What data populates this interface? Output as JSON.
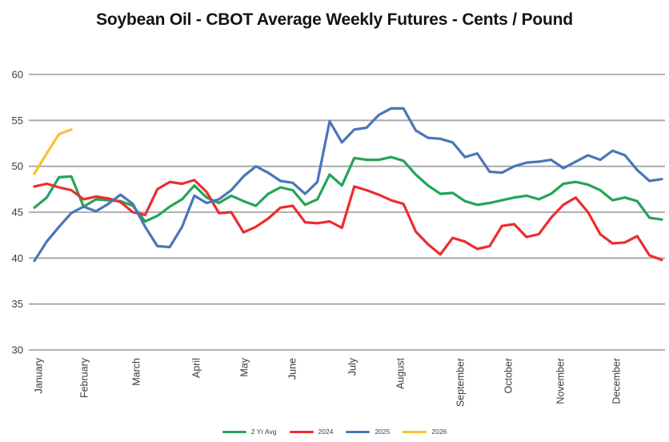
{
  "title": "Soybean Oil - CBOT Average Weekly Futures - Cents / Pound",
  "colors": {
    "grid": "#a6a6a6",
    "axis_text": "#3b3b3b",
    "title_text": "#141414",
    "series_green": "#25a457",
    "series_red": "#ed2c2f",
    "series_blue": "#4a76b8",
    "series_yellow": "#f8c032"
  },
  "chart_data": {
    "type": "line",
    "title": "Soybean Oil - CBOT Average Weekly Futures - Cents / Pound",
    "x_unit": "week of year (1-52)",
    "categories": [
      "January",
      "February",
      "March",
      "April",
      "May",
      "June",
      "July",
      "August",
      "September",
      "October",
      "November",
      "December"
    ],
    "y_ticks": [
      60,
      55,
      50,
      45,
      40,
      35,
      30
    ],
    "ylim": [
      30,
      60
    ],
    "ytick_interval": 5,
    "grid": "horizontal",
    "legend_position": "bottom",
    "series": [
      {
        "name": "2 Yr Avg",
        "color": "#25a457",
        "values": [
          45.5,
          46.6,
          48.8,
          48.9,
          45.6,
          46.4,
          46.3,
          46.2,
          45.7,
          44.0,
          44.6,
          45.6,
          46.4,
          47.9,
          46.6,
          46.0,
          46.8,
          46.2,
          45.7,
          47.0,
          47.7,
          47.4,
          45.8,
          46.4,
          49.1,
          47.9,
          50.9,
          50.7,
          50.7,
          51.0,
          50.6,
          49.1,
          47.9,
          47.0,
          47.1,
          46.2,
          45.8,
          46.0,
          46.3,
          46.6,
          46.8,
          46.4,
          47.0,
          48.1,
          48.3,
          48.0,
          47.4,
          46.3,
          46.6,
          46.2,
          44.4,
          44.2
        ]
      },
      {
        "name": "2024",
        "color": "#ed2c2f",
        "values": [
          47.8,
          48.1,
          47.7,
          47.4,
          46.4,
          46.7,
          46.5,
          46.1,
          45.0,
          44.7,
          47.5,
          48.3,
          48.1,
          48.5,
          47.2,
          44.9,
          45.0,
          42.8,
          43.4,
          44.3,
          45.5,
          45.7,
          43.9,
          43.8,
          44.0,
          43.3,
          47.8,
          47.4,
          46.9,
          46.3,
          45.9,
          42.9,
          41.5,
          40.4,
          42.2,
          41.8,
          41.0,
          41.3,
          43.5,
          43.7,
          42.3,
          42.6,
          44.4,
          45.8,
          46.6,
          45.0,
          42.6,
          41.6,
          41.7,
          42.4,
          40.3,
          39.8
        ]
      },
      {
        "name": "2025",
        "color": "#4a76b8",
        "values": [
          39.7,
          41.8,
          43.4,
          44.9,
          45.6,
          45.1,
          45.9,
          46.9,
          45.9,
          43.4,
          41.3,
          41.2,
          43.4,
          46.8,
          46.0,
          46.4,
          47.4,
          48.9,
          50.0,
          49.3,
          48.4,
          48.2,
          47.0,
          48.3,
          54.9,
          52.6,
          54.0,
          54.2,
          55.6,
          56.3,
          56.3,
          53.9,
          53.1,
          53.0,
          52.6,
          51.0,
          51.4,
          49.4,
          49.3,
          50.0,
          50.4,
          50.5,
          50.7,
          49.8,
          50.5,
          51.2,
          50.7,
          51.7,
          51.2,
          49.6,
          48.4,
          48.6
        ]
      },
      {
        "name": "2026",
        "color": "#f8c032",
        "values": [
          49.2,
          51.4,
          53.5,
          54.0
        ]
      }
    ]
  }
}
